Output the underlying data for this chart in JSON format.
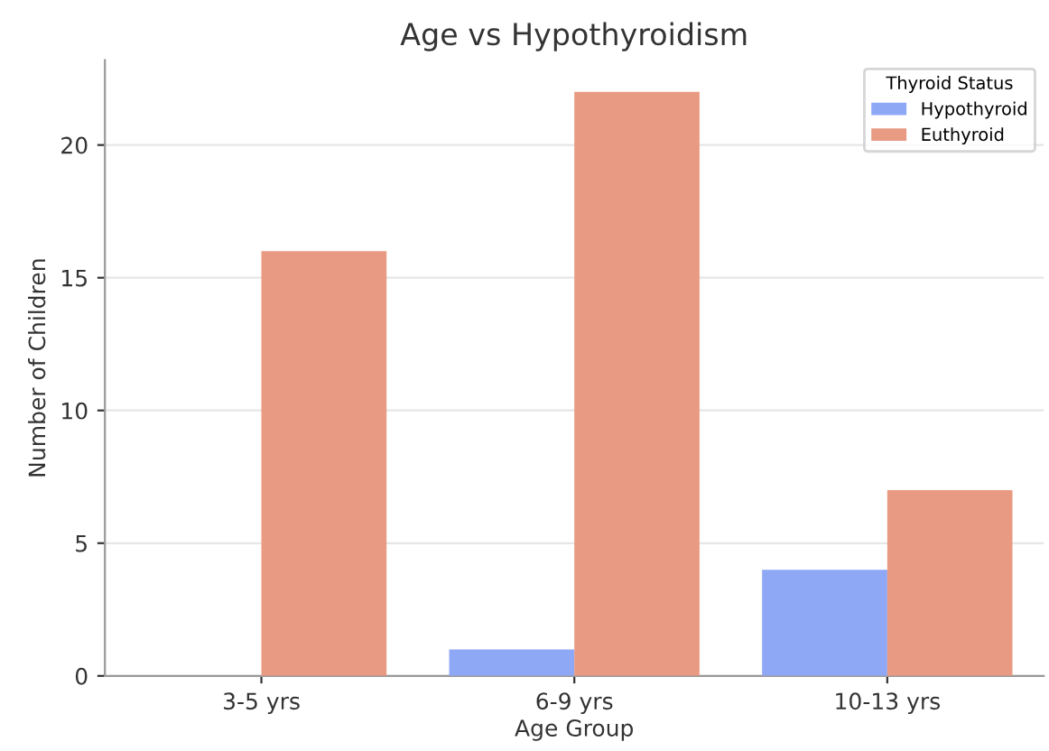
{
  "chart_data": {
    "type": "bar",
    "title": "Age vs Hypothyroidism",
    "xlabel": "Age Group",
    "ylabel": "Number of Children",
    "legend_title": "Thyroid Status",
    "categories": [
      "3-5 yrs",
      "6-9 yrs",
      "10-13 yrs"
    ],
    "series": [
      {
        "name": "Hypothyroid",
        "color": "#8fa8f5",
        "values": [
          0,
          1,
          4
        ]
      },
      {
        "name": "Euthyroid",
        "color": "#e99a82",
        "values": [
          16,
          22,
          7
        ]
      }
    ],
    "ylim": [
      0,
      23.2
    ],
    "yticks": [
      0,
      5,
      10,
      15,
      20
    ],
    "grid": "y",
    "legend": "top right"
  }
}
